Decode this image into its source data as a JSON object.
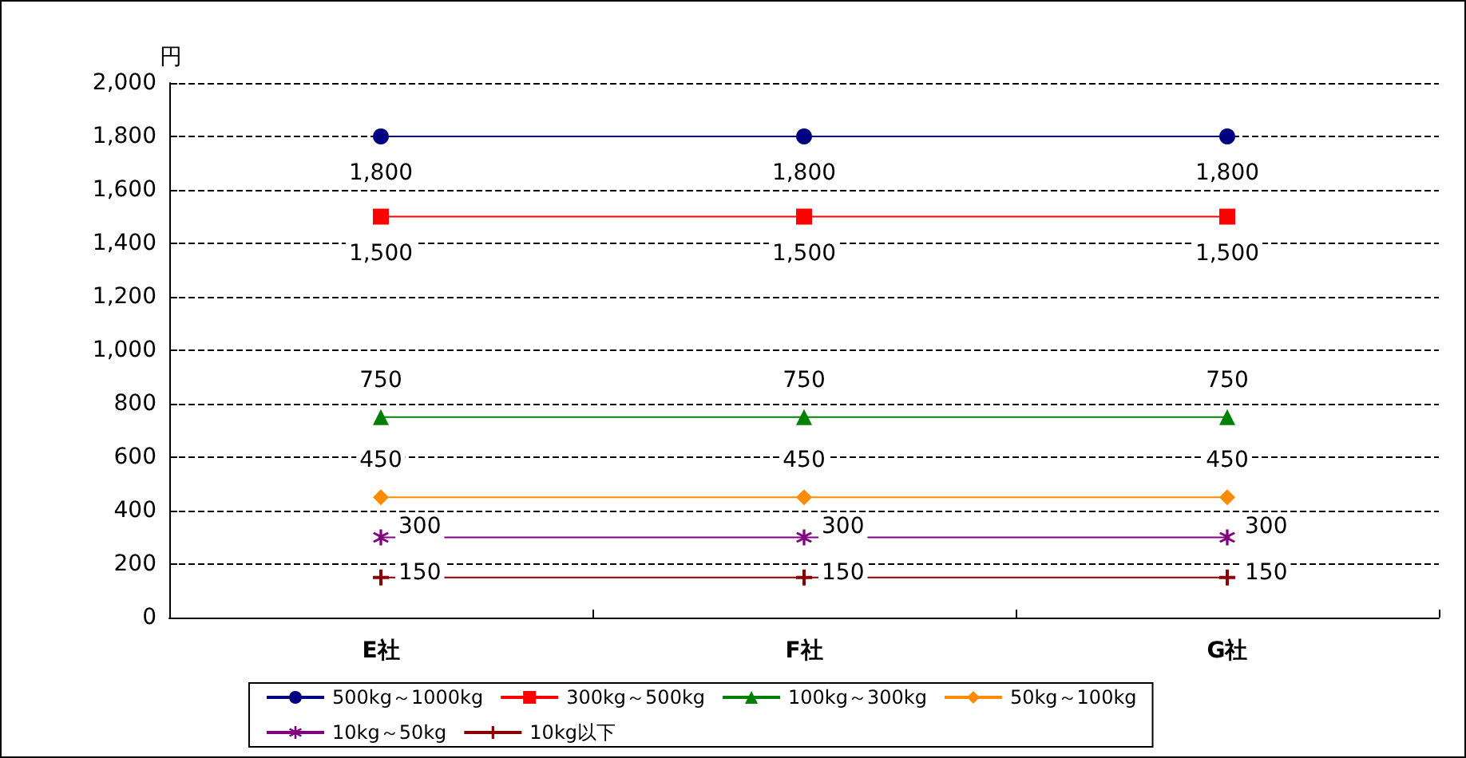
{
  "chart_data": {
    "type": "line",
    "ylabel": "円",
    "categories": [
      "E社",
      "F社",
      "G社"
    ],
    "series": [
      {
        "name": "500kg～1000kg",
        "color": "#000080",
        "marker": "circle",
        "values": [
          1800,
          1800,
          1800
        ],
        "value_labels": [
          "1,800",
          "1,800",
          "1,800"
        ]
      },
      {
        "name": "300kg～500kg",
        "color": "#ff0000",
        "marker": "square",
        "values": [
          1500,
          1500,
          1500
        ],
        "value_labels": [
          "1,500",
          "1,500",
          "1,500"
        ]
      },
      {
        "name": "100kg～300kg",
        "color": "#008000",
        "marker": "triangle",
        "values": [
          750,
          750,
          750
        ],
        "value_labels": [
          "750",
          "750",
          "750"
        ]
      },
      {
        "name": "50kg～100kg",
        "color": "#ff8c00",
        "marker": "diamond",
        "values": [
          450,
          450,
          450
        ],
        "value_labels": [
          "450",
          "450",
          "450"
        ]
      },
      {
        "name": "10kg～50kg",
        "color": "#800080",
        "marker": "star",
        "values": [
          300,
          300,
          300
        ],
        "value_labels": [
          "300",
          "300",
          "300"
        ]
      },
      {
        "name": "10kg以下",
        "color": "#8b0000",
        "marker": "cross",
        "values": [
          150,
          150,
          150
        ],
        "value_labels": [
          "150",
          "150",
          "150"
        ]
      }
    ],
    "ylim": [
      0,
      2000
    ],
    "yticks": [
      0,
      200,
      400,
      600,
      800,
      {
        "value": 1000,
        "label": "1,000"
      },
      {
        "value": 1200,
        "label": "1,200"
      },
      {
        "value": 1400,
        "label": "1,400"
      },
      {
        "value": 1600,
        "label": "1,600"
      },
      {
        "value": 1800,
        "label": "1,800"
      },
      {
        "value": 2000,
        "label": "2,000"
      }
    ],
    "grid": "y",
    "legend": "bottom",
    "line_style": "solid"
  }
}
